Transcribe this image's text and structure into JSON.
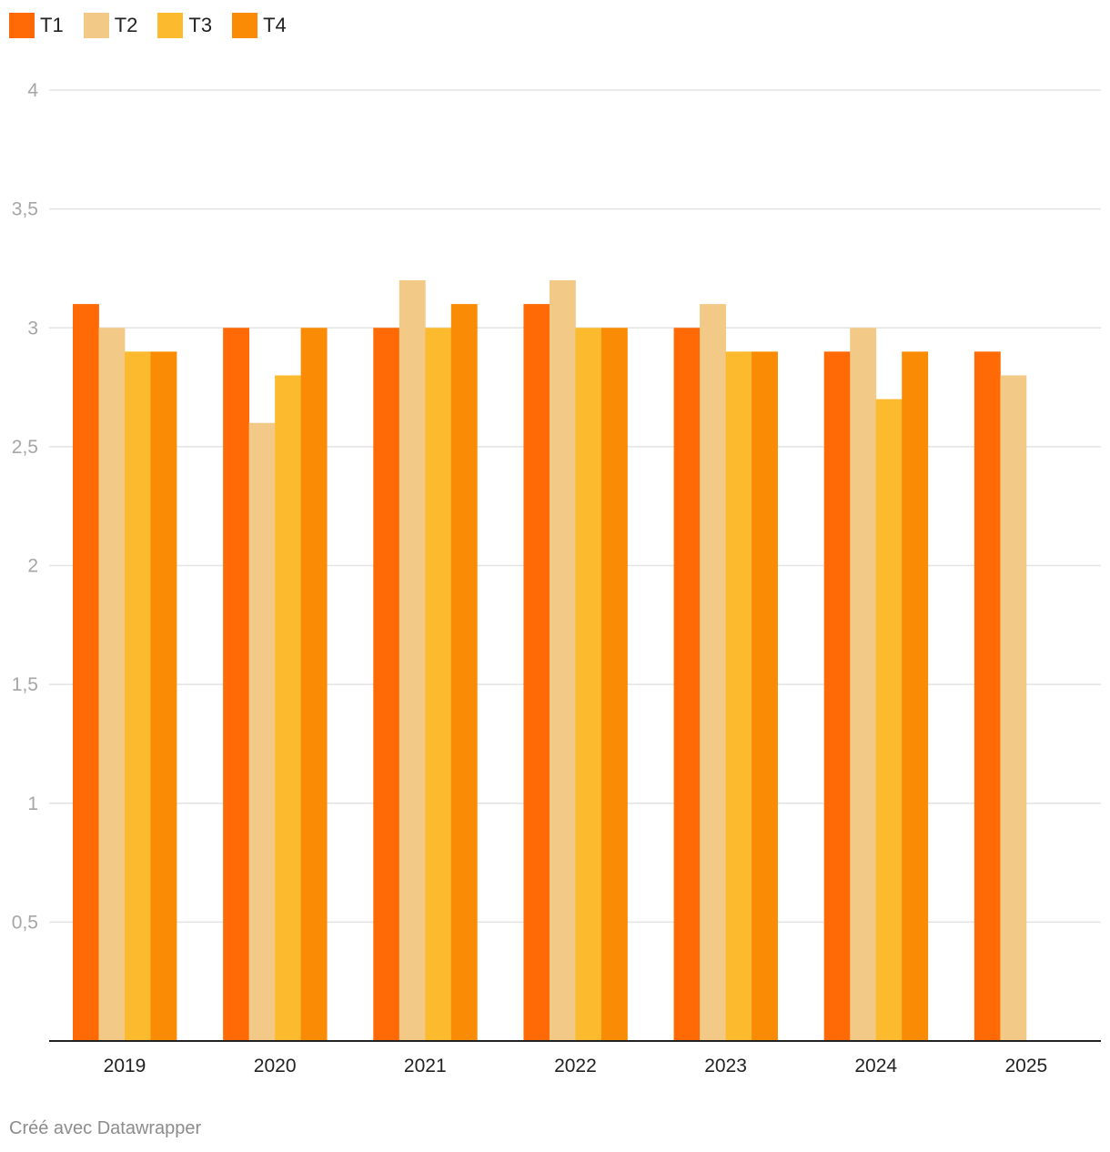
{
  "chart_data": {
    "type": "bar",
    "categories": [
      "2019",
      "2020",
      "2021",
      "2022",
      "2023",
      "2024",
      "2025"
    ],
    "series": [
      {
        "name": "T1",
        "color": "#ff6a06",
        "values": [
          3.1,
          3.0,
          3.0,
          3.1,
          3.0,
          2.9,
          2.9
        ]
      },
      {
        "name": "T2",
        "color": "#f2c986",
        "values": [
          3.0,
          2.6,
          3.2,
          3.2,
          3.1,
          3.0,
          2.8
        ]
      },
      {
        "name": "T3",
        "color": "#fcbb2e",
        "values": [
          2.9,
          2.8,
          3.0,
          3.0,
          2.9,
          2.7,
          null
        ]
      },
      {
        "name": "T4",
        "color": "#f98c04",
        "values": [
          2.9,
          3.0,
          3.1,
          3.0,
          2.9,
          2.9,
          null
        ]
      }
    ],
    "ylim": [
      0,
      4
    ],
    "yticks": [
      0.5,
      1,
      1.5,
      2,
      2.5,
      3,
      3.5,
      4
    ],
    "ytick_labels": [
      "0,5",
      "1",
      "1,5",
      "2",
      "2,5",
      "3",
      "3,5",
      "4"
    ],
    "grid": true,
    "legend_position": "top-left"
  },
  "footer": {
    "credit": "Créé avec Datawrapper"
  },
  "colors": {
    "gridline": "#e3e3e3",
    "baseline": "#222222"
  }
}
